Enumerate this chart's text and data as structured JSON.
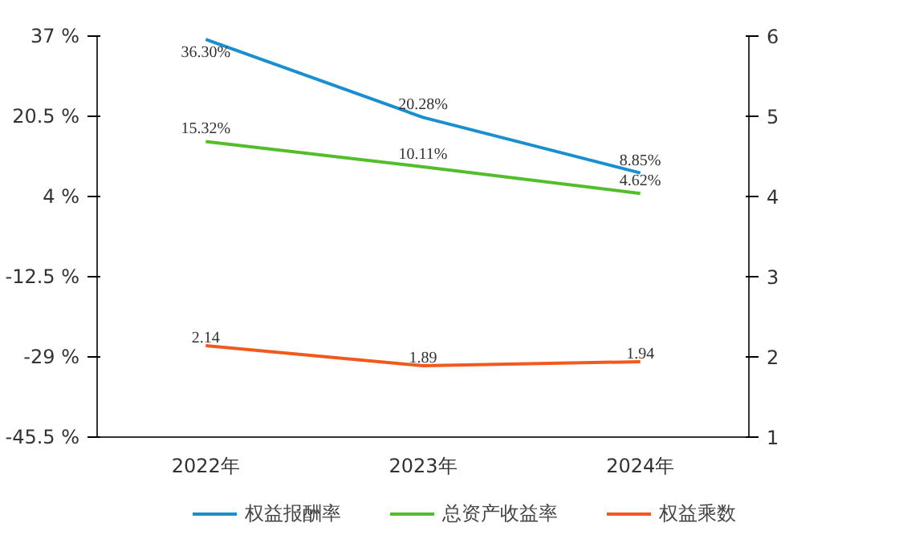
{
  "chart_data": {
    "type": "line",
    "categories": [
      "2022年",
      "2023年",
      "2024年"
    ],
    "ylim": [
      -45.5,
      37
    ],
    "yticks": [
      {
        "value": -45.5,
        "label": "-45.5 %"
      },
      {
        "value": -29,
        "label": "-29 %"
      },
      {
        "value": -12.5,
        "label": "-12.5 %"
      },
      {
        "value": 4,
        "label": "4 %"
      },
      {
        "value": 20.5,
        "label": "20.5 %"
      },
      {
        "value": 37,
        "label": "37 %"
      }
    ],
    "y2lim": [
      1,
      6
    ],
    "y2ticks": [
      1,
      2,
      3,
      4,
      5,
      6
    ],
    "series": [
      {
        "name": "权益报酬率",
        "color": "#1a8fd0",
        "values": [
          36.3,
          20.28,
          8.85
        ],
        "value_labels": [
          "36.30%",
          "20.28%",
          "8.85%"
        ]
      },
      {
        "name": "总资产收益率",
        "color": "#52be2c",
        "values": [
          15.32,
          10.11,
          4.62
        ],
        "value_labels": [
          "15.32%",
          "10.11%",
          "4.62%"
        ]
      },
      {
        "name": "权益乘数",
        "color": "#f05a1e",
        "values": [
          2.14,
          1.89,
          1.94
        ],
        "axis": "y2",
        "value_labels": [
          "2.14",
          "1.89",
          "1.94"
        ]
      }
    ],
    "legend": "bottom",
    "grid": false
  }
}
